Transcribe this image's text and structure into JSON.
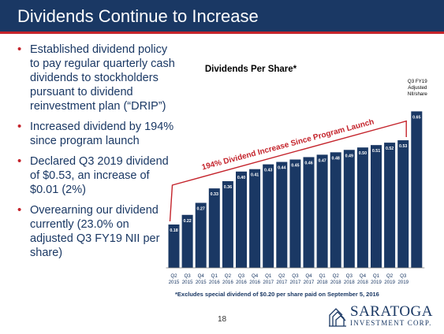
{
  "slide": {
    "title": "Dividends Continue to Increase",
    "page_number": "18",
    "bullets": [
      "Established dividend policy to pay regular quarterly cash dividends to stockholders pursuant to dividend reinvestment plan (“DRIP”)",
      "Increased dividend by 194% since program launch",
      "Declared Q3 2019 dividend of $0.53, an increase of $0.01 (2%)",
      "Overearning our dividend currently (23.0% on adjusted Q3 FY19 NII per share)"
    ],
    "footnote": "*Excludes special dividend of $0.20 per share paid on September 5, 2016",
    "logo": {
      "name": "SARATOGA",
      "sub": "INVESTMENT CORP."
    }
  },
  "colors": {
    "header_bg": "#1a3864",
    "accent_red": "#c4232b",
    "bar": "#1a3864",
    "text": "#1a3864"
  },
  "chart_data": {
    "type": "bar",
    "title": "Dividends Per Share*",
    "categories": [
      [
        "Q2",
        "2015"
      ],
      [
        "Q3",
        "2015"
      ],
      [
        "Q4",
        "2015"
      ],
      [
        "Q1",
        "2016"
      ],
      [
        "Q2",
        "2016"
      ],
      [
        "Q3",
        "2016"
      ],
      [
        "Q4",
        "2016"
      ],
      [
        "Q1",
        "2017"
      ],
      [
        "Q2",
        "2017"
      ],
      [
        "Q3",
        "2017"
      ],
      [
        "Q4",
        "2017"
      ],
      [
        "Q1",
        "2018"
      ],
      [
        "Q2",
        "2018"
      ],
      [
        "Q3",
        "2018"
      ],
      [
        "Q4",
        "2018"
      ],
      [
        "Q1",
        "2019"
      ],
      [
        "Q2",
        "2019"
      ],
      [
        "Q3",
        "2019"
      ],
      [
        "",
        ""
      ]
    ],
    "values": [
      0.18,
      0.22,
      0.27,
      0.33,
      0.36,
      0.4,
      0.41,
      0.43,
      0.44,
      0.45,
      0.46,
      0.47,
      0.48,
      0.49,
      0.5,
      0.51,
      0.52,
      0.53,
      0.65
    ],
    "data_labels": [
      "0.18",
      "0.22",
      "0.27",
      "0.33",
      "0.36",
      "0.40",
      "0.41",
      "0.43",
      "0.44",
      "0.45",
      "0.46",
      "0.47",
      "0.48",
      "0.49",
      "0.50",
      "0.51",
      "0.52",
      "0.53",
      "0.65"
    ],
    "extra_bar_label": "Q3 FY19 Adjusted NII/share",
    "annotation": "194% Dividend Increase Since Program Launch",
    "ylim": [
      0,
      0.72
    ],
    "grid": false
  }
}
